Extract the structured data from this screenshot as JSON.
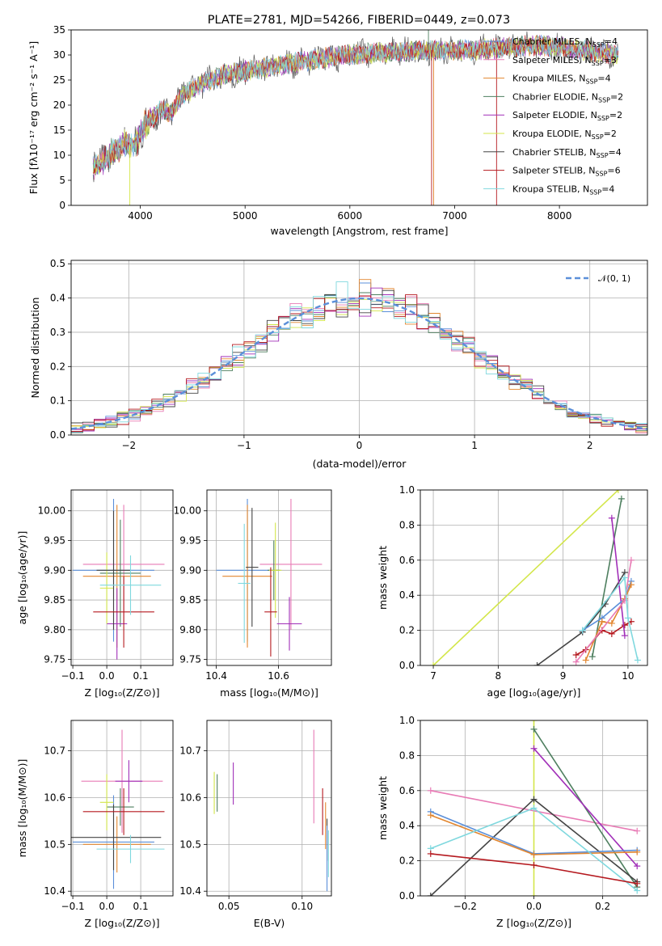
{
  "title": "PLATE=2781, MJD=54266, FIBERID=0449, z=0.073",
  "colors": {
    "Chabrier MILES": "#5b8fd9",
    "Salpeter MILES": "#e87bb5",
    "Kroupa MILES": "#e2862f",
    "Chabrier ELODIE": "#4e7f5f",
    "Salpeter ELODIE": "#a12fb8",
    "Kroupa ELODIE": "#d3e64a",
    "Chabrier STELIB": "#444444",
    "Salpeter STELIB": "#b5191f",
    "Kroupa STELIB": "#7fd8de"
  },
  "series_names": [
    "Chabrier MILES",
    "Salpeter MILES",
    "Kroupa MILES",
    "Chabrier ELODIE",
    "Salpeter ELODIE",
    "Kroupa ELODIE",
    "Chabrier STELIB",
    "Salpeter STELIB",
    "Kroupa STELIB"
  ],
  "chart_data": [
    {
      "id": "spectrum",
      "type": "line",
      "xlabel": "wavelength [Angstrom, rest frame]",
      "ylabel": "Flux [fλ10⁻¹⁷ erg cm⁻² s⁻¹ A⁻¹]",
      "xlim": [
        3340,
        8840
      ],
      "ylim": [
        0,
        35
      ],
      "xticks": [
        4000,
        5000,
        6000,
        7000,
        8000
      ],
      "yticks": [
        0,
        5,
        10,
        15,
        20,
        25,
        30,
        35
      ],
      "legend_position": "top-right",
      "legend": [
        {
          "name": "Chabrier MILES",
          "nssp": "4"
        },
        {
          "name": "Salpeter MILES",
          "nssp": "3"
        },
        {
          "name": "Kroupa MILES",
          "nssp": "4"
        },
        {
          "name": "Chabrier ELODIE",
          "nssp": "2"
        },
        {
          "name": "Salpeter ELODIE",
          "nssp": "2"
        },
        {
          "name": "Kroupa ELODIE",
          "nssp": "2"
        },
        {
          "name": "Chabrier STELIB",
          "nssp": "4"
        },
        {
          "name": "Salpeter STELIB",
          "nssp": "6"
        },
        {
          "name": "Kroupa STELIB",
          "nssp": "4"
        }
      ],
      "continuum": [
        [
          3550,
          7.5
        ],
        [
          3700,
          10
        ],
        [
          3850,
          12.5
        ],
        [
          3950,
          12
        ],
        [
          4050,
          16
        ],
        [
          4200,
          19
        ],
        [
          4300,
          18.5
        ],
        [
          4400,
          22
        ],
        [
          4600,
          24.5
        ],
        [
          4800,
          26
        ],
        [
          5000,
          26.8
        ],
        [
          5200,
          27.5
        ],
        [
          5500,
          28.5
        ],
        [
          5800,
          29.5
        ],
        [
          6000,
          30
        ],
        [
          6300,
          30.5
        ],
        [
          6600,
          30.8
        ],
        [
          6900,
          31
        ],
        [
          7200,
          31
        ],
        [
          7500,
          31.5
        ],
        [
          7800,
          32
        ],
        [
          8200,
          31
        ],
        [
          8560,
          30
        ]
      ]
    },
    {
      "id": "residuals",
      "type": "line",
      "xlabel": "(data-model)/error",
      "ylabel": "Normed distribution",
      "xlim": [
        -2.5,
        2.5
      ],
      "ylim": [
        0,
        0.51
      ],
      "xticks": [
        -2,
        -1,
        0,
        1,
        2
      ],
      "yticks": [
        0.0,
        0.1,
        0.2,
        0.3,
        0.4,
        0.5
      ],
      "grid": true,
      "legend_position": "top-right",
      "normal_label": "𝒩(0, 1)",
      "normal_color": "#5b8fd9"
    },
    {
      "id": "age-vs-Z",
      "type": "scatter",
      "xlabel": "Z [log₁₀(Z/Z⊙)]",
      "ylabel": "age  [log₁₀(age/yr)]",
      "xlim": [
        -0.105,
        0.195
      ],
      "ylim": [
        9.74,
        10.035
      ],
      "xticks": [
        -0.1,
        0.0,
        0.1
      ],
      "yticks": [
        9.75,
        9.8,
        9.85,
        9.9,
        9.95,
        10.0
      ],
      "grid": true,
      "points": [
        {
          "series": "Chabrier MILES",
          "x": 0.02,
          "y": 9.9,
          "xerr": 0.12,
          "yerr": 0.12
        },
        {
          "series": "Salpeter MILES",
          "x": 0.05,
          "y": 9.91,
          "xerr": 0.12,
          "yerr": 0.1
        },
        {
          "series": "Kroupa MILES",
          "x": 0.03,
          "y": 9.89,
          "xerr": 0.1,
          "yerr": 0.12
        },
        {
          "series": "Chabrier ELODIE",
          "x": 0.04,
          "y": 9.895,
          "xerr": 0.06,
          "yerr": 0.09
        },
        {
          "series": "Salpeter ELODIE",
          "x": 0.03,
          "y": 9.81,
          "xerr": 0.03,
          "yerr": 0.06
        },
        {
          "series": "Kroupa ELODIE",
          "x": 0.0,
          "y": 9.87,
          "xerr": 0.02,
          "yerr": 0.06
        },
        {
          "series": "Chabrier STELIB",
          "x": 0.02,
          "y": 9.9,
          "xerr": 0.05,
          "yerr": 0.1
        },
        {
          "series": "Salpeter STELIB",
          "x": 0.05,
          "y": 9.83,
          "xerr": 0.09,
          "yerr": 0.06
        },
        {
          "series": "Kroupa STELIB",
          "x": 0.07,
          "y": 9.875,
          "xerr": 0.09,
          "yerr": 0.05
        }
      ]
    },
    {
      "id": "age-vs-mass",
      "type": "scatter",
      "xlabel": "mass [log₁₀(M/M⊙)]",
      "xlim": [
        10.37,
        10.77
      ],
      "ylim": [
        9.74,
        10.035
      ],
      "xticks": [
        10.4,
        10.6
      ],
      "yticks": [
        9.75,
        9.8,
        9.85,
        9.9,
        9.95,
        10.0
      ],
      "grid": true,
      "points": [
        {
          "series": "Chabrier MILES",
          "x": 10.5,
          "y": 9.9,
          "xerr": 0.1,
          "yerr": 0.12
        },
        {
          "series": "Salpeter MILES",
          "x": 10.64,
          "y": 9.91,
          "xerr": 0.1,
          "yerr": 0.11
        },
        {
          "series": "Kroupa MILES",
          "x": 10.5,
          "y": 9.89,
          "xerr": 0.08,
          "yerr": 0.12
        },
        {
          "series": "Chabrier ELODIE",
          "x": 10.585,
          "y": 9.9,
          "xerr": 0.02,
          "yerr": 0.05
        },
        {
          "series": "Salpeter ELODIE",
          "x": 10.635,
          "y": 9.81,
          "xerr": 0.04,
          "yerr": 0.045
        },
        {
          "series": "Kroupa ELODIE",
          "x": 10.59,
          "y": 9.9,
          "xerr": 0.02,
          "yerr": 0.08
        },
        {
          "series": "Chabrier STELIB",
          "x": 10.515,
          "y": 9.905,
          "xerr": 0.02,
          "yerr": 0.1
        },
        {
          "series": "Salpeter STELIB",
          "x": 10.575,
          "y": 9.83,
          "xerr": 0.02,
          "yerr": 0.075
        },
        {
          "series": "Kroupa STELIB",
          "x": 10.49,
          "y": 9.878,
          "xerr": 0.02,
          "yerr": 0.1
        }
      ]
    },
    {
      "id": "mass-weight-vs-age",
      "type": "line",
      "xlabel": "age  [log₁₀(age/yr)]",
      "ylabel": "mass weight",
      "xlim": [
        6.8,
        10.3
      ],
      "ylim": [
        0,
        1.0
      ],
      "xticks": [
        7,
        8,
        9,
        10
      ],
      "yticks": [
        0.0,
        0.2,
        0.4,
        0.6,
        0.8,
        1.0
      ],
      "grid": true,
      "series": [
        {
          "name": "Kroupa ELODIE",
          "points": [
            [
              7.0,
              0.0
            ],
            [
              9.85,
              1.0
            ]
          ]
        },
        {
          "name": "Chabrier STELIB",
          "points": [
            [
              8.6,
              0.0
            ],
            [
              9.3,
              0.19
            ],
            [
              9.65,
              0.35
            ],
            [
              9.95,
              0.53
            ]
          ]
        },
        {
          "name": "Salpeter STELIB",
          "points": [
            [
              9.2,
              0.06
            ],
            [
              9.35,
              0.09
            ],
            [
              9.6,
              0.2
            ],
            [
              9.75,
              0.18
            ],
            [
              9.95,
              0.23
            ],
            [
              10.05,
              0.25
            ]
          ]
        },
        {
          "name": "Chabrier ELODIE",
          "points": [
            [
              9.45,
              0.05
            ],
            [
              9.9,
              0.95
            ]
          ]
        },
        {
          "name": "Salpeter ELODIE",
          "points": [
            [
              9.75,
              0.84
            ],
            [
              9.95,
              0.17
            ]
          ]
        },
        {
          "name": "Chabrier MILES",
          "points": [
            [
              9.3,
              0.2
            ],
            [
              9.6,
              0.27
            ],
            [
              9.95,
              0.38
            ],
            [
              10.05,
              0.48
            ]
          ]
        },
        {
          "name": "Kroupa MILES",
          "points": [
            [
              9.35,
              0.03
            ],
            [
              9.6,
              0.25
            ],
            [
              9.75,
              0.24
            ],
            [
              9.95,
              0.38
            ],
            [
              10.05,
              0.46
            ]
          ]
        },
        {
          "name": "Salpeter MILES",
          "points": [
            [
              9.2,
              0.02
            ],
            [
              9.95,
              0.37
            ],
            [
              10.05,
              0.6
            ]
          ]
        },
        {
          "name": "Kroupa STELIB",
          "points": [
            [
              9.3,
              0.2
            ],
            [
              9.95,
              0.5
            ],
            [
              10.0,
              0.27
            ],
            [
              10.15,
              0.03
            ]
          ]
        }
      ]
    },
    {
      "id": "mass-vs-Z",
      "type": "scatter",
      "xlabel": "Z [log₁₀(Z/Z⊙)]",
      "ylabel": "mass [log₁₀(M/M⊙)]",
      "xlim": [
        -0.105,
        0.195
      ],
      "ylim": [
        10.39,
        10.765
      ],
      "xticks": [
        -0.1,
        0.0,
        0.1
      ],
      "yticks": [
        10.4,
        10.5,
        10.6,
        10.7
      ],
      "grid": true,
      "points": [
        {
          "series": "Chabrier MILES",
          "x": 0.02,
          "y": 10.505,
          "xerr": 0.12,
          "yerr": 0.1
        },
        {
          "series": "Salpeter MILES",
          "x": 0.045,
          "y": 10.635,
          "xerr": 0.12,
          "yerr": 0.11
        },
        {
          "series": "Kroupa MILES",
          "x": 0.03,
          "y": 10.5,
          "xerr": 0.1,
          "yerr": 0.06
        },
        {
          "series": "Chabrier ELODIE",
          "x": 0.04,
          "y": 10.58,
          "xerr": 0.04,
          "yerr": 0.04
        },
        {
          "series": "Salpeter ELODIE",
          "x": 0.065,
          "y": 10.635,
          "xerr": 0.04,
          "yerr": 0.045
        },
        {
          "series": "Kroupa ELODIE",
          "x": 0.0,
          "y": 10.59,
          "xerr": 0.02,
          "yerr": 0.06
        },
        {
          "series": "Chabrier STELIB",
          "x": 0.02,
          "y": 10.515,
          "xerr": 0.14,
          "yerr": 0.07
        },
        {
          "series": "Salpeter STELIB",
          "x": 0.05,
          "y": 10.57,
          "xerr": 0.12,
          "yerr": 0.05
        },
        {
          "series": "Kroupa STELIB",
          "x": 0.07,
          "y": 10.49,
          "xerr": 0.1,
          "yerr": 0.03
        }
      ]
    },
    {
      "id": "mass-vs-EBV",
      "type": "scatter",
      "xlabel": "E(B-V)",
      "xlim": [
        0.035,
        0.12
      ],
      "ylim": [
        10.39,
        10.765
      ],
      "xticks": [
        0.05,
        0.1
      ],
      "yticks": [
        10.4,
        10.5,
        10.6,
        10.7
      ],
      "grid": true,
      "points": [
        {
          "series": "Kroupa ELODIE",
          "x": 0.04,
          "y": 10.61,
          "yerr": 0.045
        },
        {
          "series": "Chabrier ELODIE",
          "x": 0.042,
          "y": 10.61,
          "yerr": 0.04
        },
        {
          "series": "Salpeter ELODIE",
          "x": 0.053,
          "y": 10.63,
          "yerr": 0.045
        },
        {
          "series": "Salpeter MILES",
          "x": 0.108,
          "y": 10.645,
          "yerr": 0.1
        },
        {
          "series": "Salpeter STELIB",
          "x": 0.114,
          "y": 10.57,
          "yerr": 0.05
        },
        {
          "series": "Kroupa MILES",
          "x": 0.116,
          "y": 10.54,
          "yerr": 0.05
        },
        {
          "series": "Chabrier STELIB",
          "x": 0.117,
          "y": 10.51,
          "yerr": 0.045
        },
        {
          "series": "Chabrier MILES",
          "x": 0.117,
          "y": 10.47,
          "yerr": 0.07
        },
        {
          "series": "Kroupa STELIB",
          "x": 0.118,
          "y": 10.48,
          "yerr": 0.05
        }
      ]
    },
    {
      "id": "mass-weight-vs-Z",
      "type": "line",
      "xlabel": "Z [log₁₀(Z/Z⊙)]",
      "ylabel": "mass weight",
      "xlim": [
        -0.33,
        0.33
      ],
      "ylim": [
        0,
        1.0
      ],
      "xticks": [
        -0.2,
        0.0,
        0.2
      ],
      "yticks": [
        0.0,
        0.2,
        0.4,
        0.6,
        0.8,
        1.0
      ],
      "grid": true,
      "series": [
        {
          "name": "Kroupa ELODIE",
          "points": [
            [
              0.0,
              0.0
            ],
            [
              0.0,
              1.0
            ]
          ]
        },
        {
          "name": "Salpeter MILES",
          "points": [
            [
              -0.3,
              0.6
            ],
            [
              0.3,
              0.37
            ]
          ]
        },
        {
          "name": "Chabrier ELODIE",
          "points": [
            [
              0.0,
              0.95
            ],
            [
              0.3,
              0.05
            ]
          ]
        },
        {
          "name": "Salpeter ELODIE",
          "points": [
            [
              0.0,
              0.84
            ],
            [
              0.3,
              0.17
            ]
          ]
        },
        {
          "name": "Chabrier STELIB",
          "points": [
            [
              -0.3,
              0.0
            ],
            [
              0.0,
              0.55
            ],
            [
              0.3,
              0.08
            ]
          ]
        },
        {
          "name": "Chabrier MILES",
          "points": [
            [
              -0.3,
              0.48
            ],
            [
              0.0,
              0.24
            ],
            [
              0.3,
              0.26
            ]
          ]
        },
        {
          "name": "Kroupa MILES",
          "points": [
            [
              -0.3,
              0.46
            ],
            [
              0.0,
              0.235
            ],
            [
              0.3,
              0.25
            ]
          ]
        },
        {
          "name": "Kroupa STELIB",
          "points": [
            [
              -0.3,
              0.27
            ],
            [
              0.0,
              0.5
            ],
            [
              0.3,
              0.03
            ]
          ]
        },
        {
          "name": "Salpeter STELIB",
          "points": [
            [
              -0.3,
              0.24
            ],
            [
              0.0,
              0.175
            ],
            [
              0.3,
              0.07
            ]
          ]
        }
      ]
    }
  ]
}
